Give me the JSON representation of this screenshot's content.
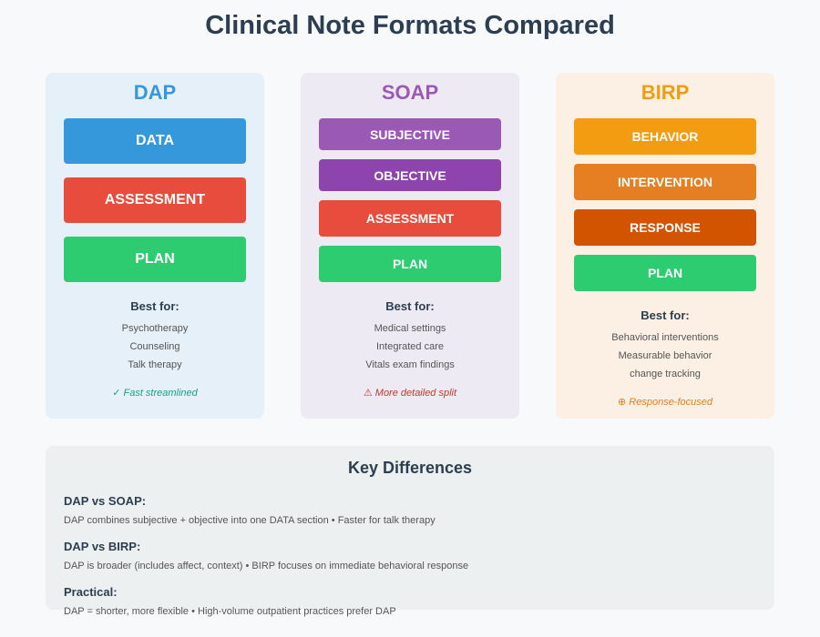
{
  "title": "Clinical Note Formats Compared",
  "formats": [
    {
      "name": "DAP",
      "color": "#3498db",
      "sections": [
        {
          "label": "DATA",
          "color": "#3498db"
        },
        {
          "label": "ASSESSMENT",
          "color": "#e74c3c"
        },
        {
          "label": "PLAN",
          "color": "#2ecc71"
        }
      ],
      "best_for_label": "Best for:",
      "uses": [
        "Psychotherapy",
        "Counseling",
        "Talk therapy"
      ],
      "note": "✓ Fast streamlined",
      "note_color": "#16a085"
    },
    {
      "name": "SOAP",
      "color": "#9b59b6",
      "sections": [
        {
          "label": "SUBJECTIVE",
          "color": "#9b59b6"
        },
        {
          "label": "OBJECTIVE",
          "color": "#8e44ad"
        },
        {
          "label": "ASSESSMENT",
          "color": "#e74c3c"
        },
        {
          "label": "PLAN",
          "color": "#2ecc71"
        }
      ],
      "best_for_label": "Best for:",
      "uses": [
        "Medical settings",
        "Integrated care",
        "Vitals exam findings"
      ],
      "note": "⚠ More detailed split",
      "note_color": "#c0392b"
    },
    {
      "name": "BIRP",
      "color": "#f39c12",
      "sections": [
        {
          "label": "BEHAVIOR",
          "color": "#f39c12"
        },
        {
          "label": "INTERVENTION",
          "color": "#e67e22"
        },
        {
          "label": "RESPONSE",
          "color": "#d35400"
        },
        {
          "label": "PLAN",
          "color": "#2ecc71"
        }
      ],
      "best_for_label": "Best for:",
      "uses": [
        "Behavioral interventions",
        "Measurable behavior",
        "change tracking"
      ],
      "note": "⊕ Response-focused",
      "note_color": "#e67e22"
    }
  ],
  "differences": {
    "title": "Key Differences",
    "items": [
      {
        "heading": "DAP vs SOAP:",
        "text": "DAP combines subjective + objective into one DATA section • Faster for talk therapy"
      },
      {
        "heading": "DAP vs BIRP:",
        "text": "DAP is broader (includes affect, context) • BIRP focuses on immediate behavioral response"
      },
      {
        "heading": "Practical:",
        "text": "DAP = shorter, more flexible • High-volume outpatient practices prefer DAP"
      }
    ]
  }
}
